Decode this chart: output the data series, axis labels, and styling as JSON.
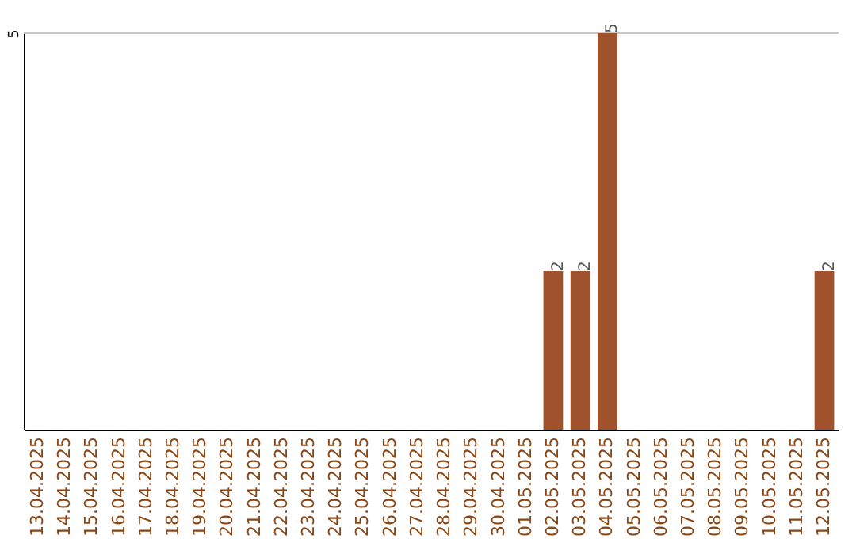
{
  "chart_data": {
    "type": "bar",
    "categories": [
      "13.04.2025",
      "14.04.2025",
      "15.04.2025",
      "16.04.2025",
      "17.04.2025",
      "18.04.2025",
      "19.04.2025",
      "20.04.2025",
      "21.04.2025",
      "22.04.2025",
      "23.04.2025",
      "24.04.2025",
      "25.04.2025",
      "26.04.2025",
      "27.04.2025",
      "28.04.2025",
      "29.04.2025",
      "30.04.2025",
      "01.05.2025",
      "02.05.2025",
      "03.05.2025",
      "04.05.2025",
      "05.05.2025",
      "06.05.2025",
      "07.05.2025",
      "08.05.2025",
      "09.05.2025",
      "10.05.2025",
      "11.05.2025",
      "12.05.2025"
    ],
    "values": [
      null,
      null,
      null,
      null,
      null,
      null,
      null,
      null,
      null,
      null,
      null,
      null,
      null,
      null,
      null,
      null,
      null,
      null,
      null,
      2,
      2,
      5,
      null,
      null,
      null,
      null,
      null,
      null,
      null,
      2
    ],
    "value_labels": [
      null,
      null,
      null,
      null,
      null,
      null,
      null,
      null,
      null,
      null,
      null,
      null,
      null,
      null,
      null,
      null,
      null,
      null,
      null,
      "2",
      "2",
      "5",
      null,
      null,
      null,
      null,
      null,
      null,
      null,
      "2"
    ],
    "color": "#a0522d",
    "ylim": [
      0,
      5
    ],
    "yticks": [
      5
    ],
    "ref_lines": [
      {
        "axis": "y",
        "value": 5,
        "color": "#c8c8c8"
      }
    ]
  }
}
